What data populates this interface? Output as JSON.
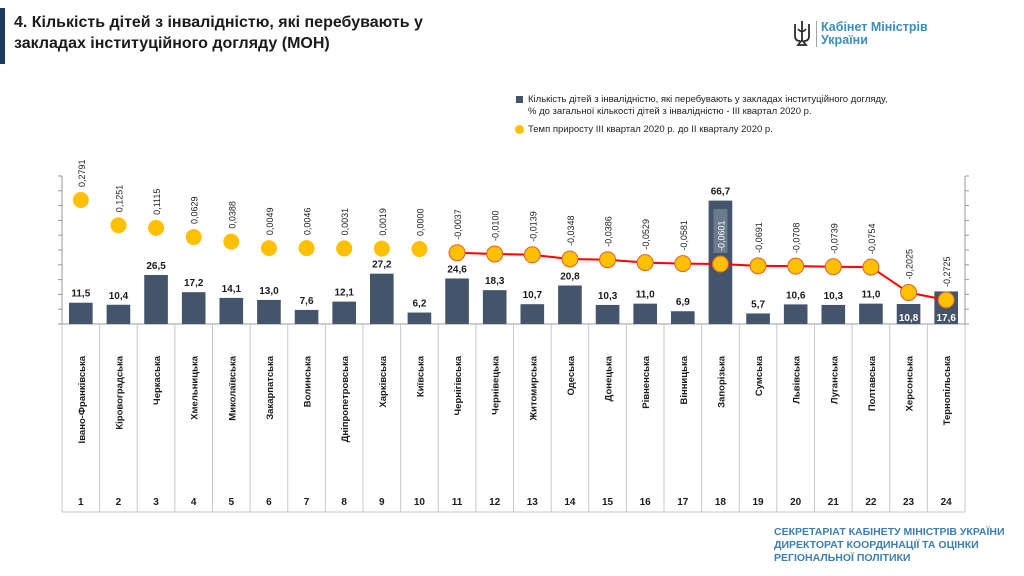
{
  "slide": {
    "title": "4. Кількість дітей з інвалідністю, які перебувають у закладах інституційного догляду (МОН)",
    "logo_text": "Кабінет Міністрів\nУкраїни",
    "footer": "СЕКРЕТАРІАТ КАБІНЕТУ МІНІСТРІВ УКРАЇНИ\nДИРЕКТОРАТ КООРДИНАЦІЇ ТА ОЦІНКИ РЕГІОНАЛЬНОЇ ПОЛІТИКИ"
  },
  "legend": {
    "bars": "Кількість дітей з інвалідністю, які перебувають у закладах інституційного догляду,\n% до загальної кількості дітей з інвалідністю - ІІІ квартал 2020 р.",
    "dots": "Темп приросту ІІІ квартал 2020 р. до ІІ кварталу 2020 р."
  },
  "colors": {
    "bar": "#44546a",
    "dot": "#ffc000",
    "line": "#ff0000",
    "accent": "#3c8dbc"
  },
  "chart_data": {
    "type": "bar",
    "categories": [
      "Івано-Франківська",
      "Кіровоградська",
      "Черкаська",
      "Хмельницька",
      "Миколаївська",
      "Закарпатська",
      "Волинська",
      "Дніпропетровська",
      "Харківська",
      "Київська",
      "Чернігівська",
      "Чернівецька",
      "Житомирська",
      "Одеська",
      "Донецька",
      "Рівненська",
      "Вінницька",
      "Запорізька",
      "Сумська",
      "Львівська",
      "Луганська",
      "Полтавська",
      "Херсонська",
      "Тернопільська"
    ],
    "ranks": [
      "1",
      "2",
      "3",
      "4",
      "5",
      "6",
      "7",
      "8",
      "9",
      "10",
      "11",
      "12",
      "13",
      "14",
      "15",
      "16",
      "17",
      "18",
      "19",
      "20",
      "21",
      "22",
      "23",
      "24"
    ],
    "series": [
      {
        "name": "Кількість дітей з інвалідністю, які перебувають у закладах інституційного догляду, % до загальної кількості дітей з інвалідністю - ІІІ квартал 2020 р.",
        "values": [
          11.5,
          10.4,
          26.5,
          17.2,
          14.1,
          13.0,
          7.6,
          12.1,
          27.2,
          6.2,
          24.6,
          18.3,
          10.7,
          20.8,
          10.3,
          11.0,
          6.9,
          66.7,
          5.7,
          10.6,
          10.3,
          11.0,
          10.8,
          17.6
        ],
        "labels": [
          "11,5",
          "10,4",
          "26,5",
          "17,2",
          "14,1",
          "13,0",
          "7,6",
          "12,1",
          "27,2",
          "6,2",
          "24,6",
          "18,3",
          "10,7",
          "20,8",
          "10,3",
          "11,0",
          "6,9",
          "66,7",
          "5,7",
          "10,6",
          "10,3",
          "11,0",
          "10,8",
          "17,6"
        ]
      },
      {
        "name": "Темп приросту ІІІ квартал 2020 р. до ІІ кварталу 2020 р.",
        "values": [
          0.2791,
          0.1251,
          0.1115,
          0.0629,
          0.0388,
          0.0049,
          0.0046,
          0.0031,
          0.0019,
          0.0,
          -0.0037,
          -0.01,
          -0.0139,
          -0.0348,
          -0.0386,
          -0.0529,
          -0.0581,
          -0.0601,
          -0.0691,
          -0.0708,
          -0.0739,
          -0.0754,
          -0.2025,
          -0.2725
        ],
        "labels": [
          "0,2791",
          "0,1251",
          "0,1115",
          "0,0629",
          "0,0388",
          "0,0049",
          "0,0046",
          "0,0031",
          "0,0019",
          "0,0000",
          "-0,0037",
          "-0,0100",
          "-0,0139",
          "-0,0348",
          "-0,0386",
          "-0,0529",
          "-0,0581",
          "-0,0601",
          "-0,0691",
          "-0,0708",
          "-0,0739",
          "-0,0754",
          "-0,2025",
          "-0,2725"
        ]
      }
    ],
    "ylim": [
      0,
      70
    ],
    "legend_position": "top-right"
  }
}
